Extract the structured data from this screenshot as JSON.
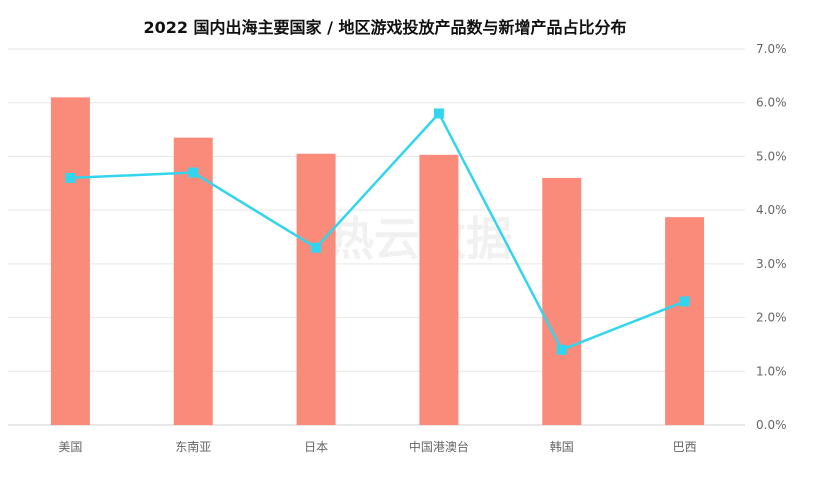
{
  "chart_data": {
    "type": "bar",
    "title": "2022 国内出海主要国家 / 地区游戏投放产品数与新增产品占比分布",
    "categories": [
      "美国",
      "东南亚",
      "日本",
      "中国港澳台",
      "韩国",
      "巴西"
    ],
    "series": [
      {
        "type": "bar",
        "values": [
          6.1,
          5.35,
          5.05,
          5.03,
          4.6,
          3.87
        ],
        "color": "#FA8A79"
      },
      {
        "type": "line",
        "values": [
          4.6,
          4.7,
          3.3,
          5.8,
          1.4,
          2.3
        ],
        "color": "#33D5EE"
      }
    ],
    "y_axis": {
      "side": "right",
      "min": 0,
      "max": 7,
      "step": 1,
      "tick_labels": [
        "0.0%",
        "1.0%",
        "2.0%",
        "3.0%",
        "4.0%",
        "5.0%",
        "6.0%",
        "7.0%"
      ]
    },
    "grid": true,
    "legend": "none",
    "watermark": "热云数据"
  }
}
